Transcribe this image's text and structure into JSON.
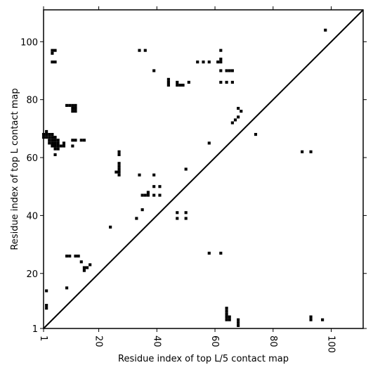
{
  "chart_data": {
    "type": "scatter",
    "xlabel": "Residue index of top L/5 contact map",
    "ylabel": "Residue index of top L contact map",
    "xlim": [
      1,
      111
    ],
    "ylim": [
      1,
      111
    ],
    "x_ticks": [
      1,
      20,
      40,
      60,
      80,
      100
    ],
    "y_ticks": [
      1,
      20,
      40,
      60,
      80,
      100
    ],
    "diagonal_line": true,
    "grid": false,
    "legend": "none",
    "marker": "square",
    "marker_color": "#000000",
    "series": [
      {
        "points": [
          [
            2,
            14
          ],
          [
            2,
            8
          ],
          [
            2,
            9
          ],
          [
            9,
            15
          ],
          [
            9,
            26
          ],
          [
            10,
            26
          ],
          [
            12,
            26
          ],
          [
            13,
            26
          ],
          [
            14,
            24
          ],
          [
            15,
            21
          ],
          [
            15,
            22
          ],
          [
            16,
            22
          ],
          [
            17,
            23
          ],
          [
            24,
            36
          ],
          [
            27,
            54
          ],
          [
            27,
            55
          ],
          [
            27,
            56
          ],
          [
            27,
            57
          ],
          [
            27,
            58
          ],
          [
            26,
            55
          ],
          [
            27,
            61
          ],
          [
            27,
            62
          ],
          [
            33,
            39
          ],
          [
            35,
            42
          ],
          [
            35,
            47
          ],
          [
            36,
            47
          ],
          [
            37,
            47
          ],
          [
            37,
            48
          ],
          [
            39,
            47
          ],
          [
            39,
            50
          ],
          [
            39,
            54
          ],
          [
            41,
            47
          ],
          [
            41,
            50
          ],
          [
            34,
            54
          ],
          [
            47,
            39
          ],
          [
            47,
            41
          ],
          [
            50,
            39
          ],
          [
            50,
            41
          ],
          [
            50,
            56
          ],
          [
            58,
            27
          ],
          [
            62,
            27
          ],
          [
            58,
            65
          ],
          [
            66,
            72
          ],
          [
            67,
            73
          ],
          [
            68,
            74
          ],
          [
            68,
            77
          ],
          [
            69,
            76
          ],
          [
            74,
            68
          ],
          [
            90,
            62
          ],
          [
            93,
            62
          ],
          [
            1,
            67
          ],
          [
            1,
            68
          ],
          [
            2,
            67
          ],
          [
            2,
            68
          ],
          [
            2,
            69
          ],
          [
            3,
            65
          ],
          [
            3,
            66
          ],
          [
            3,
            67
          ],
          [
            3,
            68
          ],
          [
            4,
            64
          ],
          [
            4,
            65
          ],
          [
            4,
            66
          ],
          [
            4,
            67
          ],
          [
            4,
            68
          ],
          [
            5,
            63
          ],
          [
            5,
            64
          ],
          [
            5,
            65
          ],
          [
            5,
            66
          ],
          [
            5,
            67
          ],
          [
            5,
            61
          ],
          [
            6,
            63
          ],
          [
            6,
            64
          ],
          [
            6,
            65
          ],
          [
            6,
            66
          ],
          [
            7,
            64
          ],
          [
            8,
            64
          ],
          [
            8,
            65
          ],
          [
            9,
            78
          ],
          [
            10,
            78
          ],
          [
            11,
            78
          ],
          [
            11,
            76
          ],
          [
            11,
            77
          ],
          [
            12,
            76
          ],
          [
            12,
            77
          ],
          [
            12,
            78
          ],
          [
            11,
            64
          ],
          [
            11,
            66
          ],
          [
            12,
            66
          ],
          [
            14,
            66
          ],
          [
            15,
            66
          ],
          [
            4,
            93
          ],
          [
            5,
            93
          ],
          [
            4,
            96
          ],
          [
            4,
            97
          ],
          [
            5,
            97
          ],
          [
            34,
            97
          ],
          [
            36,
            97
          ],
          [
            39,
            90
          ],
          [
            44,
            85
          ],
          [
            44,
            86
          ],
          [
            44,
            87
          ],
          [
            47,
            85
          ],
          [
            47,
            86
          ],
          [
            48,
            85
          ],
          [
            49,
            85
          ],
          [
            51,
            86
          ],
          [
            54,
            93
          ],
          [
            56,
            93
          ],
          [
            58,
            93
          ],
          [
            61,
            93
          ],
          [
            62,
            93
          ],
          [
            62,
            94
          ],
          [
            62,
            97
          ],
          [
            62,
            90
          ],
          [
            62,
            86
          ],
          [
            64,
            86
          ],
          [
            64,
            90
          ],
          [
            65,
            90
          ],
          [
            66,
            90
          ],
          [
            66,
            86
          ],
          [
            98,
            104
          ],
          [
            64,
            4
          ],
          [
            64,
            5
          ],
          [
            64,
            6
          ],
          [
            64,
            7
          ],
          [
            64,
            8
          ],
          [
            65,
            4
          ],
          [
            65,
            5
          ],
          [
            68,
            2
          ],
          [
            68,
            3
          ],
          [
            68,
            4
          ],
          [
            93,
            4
          ],
          [
            93,
            5
          ],
          [
            97,
            4
          ]
        ]
      }
    ]
  }
}
